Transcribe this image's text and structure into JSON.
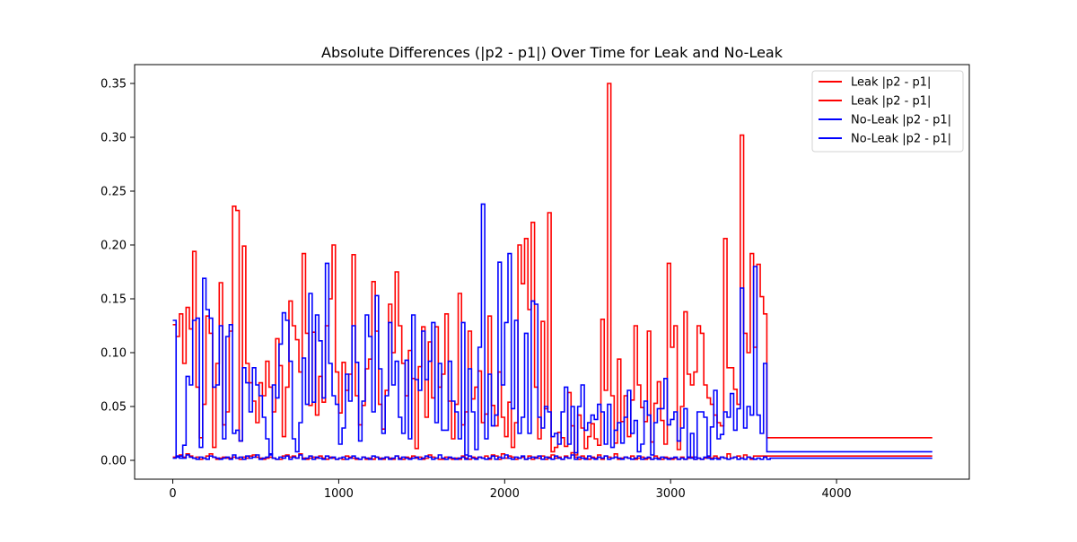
{
  "chart_data": {
    "type": "line",
    "title": "Absolute Differences (|p2 - p1|) Over Time for Leak and No-Leak",
    "xlabel": "",
    "ylabel": "",
    "xlim": [
      -230,
      4800
    ],
    "ylim": [
      -0.0175,
      0.3675
    ],
    "x_ticks": [
      0,
      1000,
      2000,
      3000,
      4000
    ],
    "x_tick_labels": [
      "0",
      "1000",
      "2000",
      "3000",
      "4000"
    ],
    "y_ticks": [
      0.0,
      0.05,
      0.1,
      0.15,
      0.2,
      0.25,
      0.3,
      0.35
    ],
    "y_tick_labels": [
      "0.00",
      "0.05",
      "0.10",
      "0.15",
      "0.20",
      "0.25",
      "0.30",
      "0.35"
    ],
    "grid": false,
    "legend_position": "upper right",
    "step": 20,
    "series": [
      {
        "name": "Leak |p2 - p1|",
        "color": "#ff0000",
        "x_start": 0,
        "values": [
          0.126,
          0.115,
          0.136,
          0.09,
          0.142,
          0.122,
          0.194,
          0.068,
          0.021,
          0.052,
          0.134,
          0.118,
          0.012,
          0.09,
          0.165,
          0.033,
          0.045,
          0.12,
          0.236,
          0.232,
          0.018,
          0.199,
          0.09,
          0.072,
          0.055,
          0.035,
          0.072,
          0.06,
          0.092,
          0.068,
          0.045,
          0.113,
          0.088,
          0.022,
          0.068,
          0.148,
          0.125,
          0.112,
          0.082,
          0.192,
          0.118,
          0.051,
          0.119,
          0.042,
          0.078,
          0.054,
          0.125,
          0.15,
          0.2,
          0.082,
          0.044,
          0.091,
          0.065,
          0.08,
          0.191,
          0.06,
          0.033,
          0.051,
          0.085,
          0.094,
          0.166,
          0.12,
          0.052,
          0.029,
          0.065,
          0.145,
          0.1,
          0.175,
          0.125,
          0.09,
          0.06,
          0.102,
          0.076,
          0.011,
          0.087,
          0.124,
          0.04,
          0.11,
          0.058,
          0.124,
          0.068,
          0.08,
          0.136,
          0.055,
          0.02,
          0.052,
          0.155,
          0.033,
          0.045,
          0.12,
          0.057,
          0.068,
          0.083,
          0.035,
          0.043,
          0.134,
          0.051,
          0.032,
          0.082,
          0.04,
          0.022,
          0.054,
          0.012,
          0.035,
          0.2,
          0.164,
          0.206,
          0.14,
          0.221,
          0.068,
          0.02,
          0.129,
          0.048,
          0.23,
          0.008,
          0.012,
          0.026,
          0.021,
          0.013,
          0.063,
          0.032,
          0.005,
          0.042,
          0.03,
          0.011,
          0.022,
          0.034,
          0.02,
          0.014,
          0.131,
          0.065,
          0.35,
          0.06,
          0.016,
          0.094,
          0.036,
          0.06,
          0.022,
          0.056,
          0.125,
          0.07,
          0.049,
          0.036,
          0.12,
          0.017,
          0.053,
          0.073,
          0.037,
          0.015,
          0.183,
          0.105,
          0.125,
          0.01,
          0.05,
          0.138,
          0.08,
          0.07,
          0.082,
          0.125,
          0.118,
          0.07,
          0.058,
          0.052,
          0.042,
          0.035,
          0.032,
          0.206,
          0.086,
          0.086,
          0.066,
          0.052,
          0.302,
          0.118,
          0.1,
          0.192,
          0.105,
          0.182,
          0.152,
          0.136,
          0.021,
          0.021
        ],
        "x_end": 4577
      },
      {
        "name": "Leak |p2 - p1|",
        "color": "#ff0000",
        "x_start": 0,
        "values": [
          0.003,
          0.004,
          0.005,
          0.003,
          0.006,
          0.004,
          0.002,
          0.003,
          0.001,
          0.002,
          0.004,
          0.006,
          0.003,
          0.001,
          0.002,
          0.003,
          0.002,
          0.002,
          0.003,
          0.002,
          0.001,
          0.003,
          0.002,
          0.004,
          0.005,
          0.003,
          0.002,
          0.001,
          0.002,
          0.003,
          0.002,
          0.001,
          0.001,
          0.004,
          0.005,
          0.003,
          0.004,
          0.002,
          0.006,
          0.002,
          0.001,
          0.002,
          0.003,
          0.002,
          0.004,
          0.002,
          0.001,
          0.003,
          0.002,
          0.001,
          0.002,
          0.001,
          0.004,
          0.003,
          0.002,
          0.001,
          0.001,
          0.003,
          0.001,
          0.002,
          0.001,
          0.003,
          0.002,
          0.001,
          0.003,
          0.002,
          0.001,
          0.004,
          0.002,
          0.001,
          0.003,
          0.002,
          0.004,
          0.002,
          0.003,
          0.001,
          0.002,
          0.005,
          0.003,
          0.002,
          0.001,
          0.001,
          0.003,
          0.002,
          0.001,
          0.002,
          0.001,
          0.004,
          0.002,
          0.001,
          0.003,
          0.002,
          0.003,
          0.002,
          0.004,
          0.001,
          0.005,
          0.004,
          0.001,
          0.006,
          0.002,
          0.004,
          0.003,
          0.001,
          0.002,
          0.003,
          0.001,
          0.004,
          0.001,
          0.003,
          0.002,
          0.004,
          0.001,
          0.003,
          0.005,
          0.002,
          0.003,
          0.001,
          0.004,
          0.002,
          0.007,
          0.003,
          0.001,
          0.004,
          0.002,
          0.001,
          0.003,
          0.002,
          0.005,
          0.001,
          0.004,
          0.003,
          0.002,
          0.006,
          0.001,
          0.002,
          0.003,
          0.002,
          0.004,
          0.001,
          0.002,
          0.003,
          0.001,
          0.002,
          0.001,
          0.004,
          0.002,
          0.001,
          0.003,
          0.002,
          0.001,
          0.002,
          0.001,
          0.003,
          0.001,
          0.002,
          0.003,
          0.001,
          0.002,
          0.001,
          0.002,
          0.003,
          0.002,
          0.004,
          0.002,
          0.003,
          0.002,
          0.006,
          0.002,
          0.003,
          0.004,
          0.002,
          0.005,
          0.003,
          0.001,
          0.004,
          0.004
        ],
        "x_end": 4577
      },
      {
        "name": "No-Leak |p2 - p1|",
        "color": "#0000ff",
        "x_start": 0,
        "values": [
          0.13,
          0.004,
          0.002,
          0.014,
          0.078,
          0.07,
          0.13,
          0.132,
          0.012,
          0.169,
          0.14,
          0.132,
          0.068,
          0.07,
          0.125,
          0.02,
          0.115,
          0.126,
          0.025,
          0.028,
          0.018,
          0.086,
          0.072,
          0.045,
          0.086,
          0.07,
          0.06,
          0.04,
          0.02,
          0.005,
          0.07,
          0.058,
          0.108,
          0.137,
          0.13,
          0.092,
          0.02,
          0.008,
          0.035,
          0.095,
          0.052,
          0.155,
          0.054,
          0.135,
          0.111,
          0.058,
          0.183,
          0.09,
          0.06,
          0.052,
          0.015,
          0.03,
          0.08,
          0.055,
          0.125,
          0.091,
          0.018,
          0.055,
          0.135,
          0.115,
          0.045,
          0.153,
          0.085,
          0.025,
          0.06,
          0.128,
          0.07,
          0.092,
          0.04,
          0.025,
          0.093,
          0.02,
          0.135,
          0.075,
          0.065,
          0.12,
          0.075,
          0.092,
          0.128,
          0.035,
          0.09,
          0.028,
          0.028,
          0.092,
          0.055,
          0.045,
          0.02,
          0.128,
          0.005,
          0.085,
          0.045,
          0.01,
          0.105,
          0.238,
          0.02,
          0.08,
          0.032,
          0.042,
          0.184,
          0.07,
          0.128,
          0.192,
          0.048,
          0.13,
          0.025,
          0.04,
          0.118,
          0.025,
          0.148,
          0.145,
          0.04,
          0.03,
          0.05,
          0.045,
          0.022,
          0.025,
          0.015,
          0.045,
          0.068,
          0.015,
          0.05,
          0.007,
          0.05,
          0.07,
          0.028,
          0.035,
          0.042,
          0.038,
          0.052,
          0.045,
          0.015,
          0.052,
          0.012,
          0.028,
          0.035,
          0.016,
          0.04,
          0.065,
          0.025,
          0.037,
          0.008,
          0.015,
          0.055,
          0.042,
          0.005,
          0.035,
          0.048,
          0.048,
          0.076,
          0.033,
          0.038,
          0.045,
          0.018,
          0.03,
          0.048,
          0.003,
          0.025,
          0.003,
          0.045,
          0.045,
          0.04,
          0.004,
          0.031,
          0.065,
          0.02,
          0.024,
          0.045,
          0.04,
          0.062,
          0.028,
          0.048,
          0.16,
          0.03,
          0.05,
          0.042,
          0.18,
          0.042,
          0.025,
          0.09,
          0.008,
          0.008
        ],
        "x_end": 4577
      },
      {
        "name": "No-Leak |p2 - p1|",
        "color": "#0000ff",
        "x_start": 0,
        "values": [
          0.002,
          0.003,
          0.004,
          0.002,
          0.005,
          0.003,
          0.002,
          0.001,
          0.003,
          0.002,
          0.001,
          0.004,
          0.003,
          0.002,
          0.001,
          0.002,
          0.003,
          0.001,
          0.005,
          0.002,
          0.003,
          0.001,
          0.004,
          0.002,
          0.003,
          0.005,
          0.001,
          0.002,
          0.003,
          0.006,
          0.002,
          0.001,
          0.003,
          0.002,
          0.004,
          0.001,
          0.003,
          0.002,
          0.005,
          0.001,
          0.002,
          0.004,
          0.001,
          0.003,
          0.002,
          0.001,
          0.004,
          0.002,
          0.003,
          0.001,
          0.002,
          0.003,
          0.001,
          0.002,
          0.004,
          0.002,
          0.001,
          0.003,
          0.002,
          0.001,
          0.004,
          0.003,
          0.001,
          0.002,
          0.003,
          0.001,
          0.002,
          0.004,
          0.001,
          0.003,
          0.002,
          0.001,
          0.002,
          0.003,
          0.001,
          0.002,
          0.004,
          0.003,
          0.001,
          0.002,
          0.005,
          0.002,
          0.001,
          0.003,
          0.002,
          0.001,
          0.002,
          0.003,
          0.001,
          0.004,
          0.002,
          0.001,
          0.003,
          0.002,
          0.001,
          0.002,
          0.004,
          0.001,
          0.003,
          0.002,
          0.005,
          0.002,
          0.001,
          0.003,
          0.002,
          0.004,
          0.001,
          0.002,
          0.003,
          0.002,
          0.004,
          0.001,
          0.003,
          0.002,
          0.001,
          0.004,
          0.002,
          0.001,
          0.003,
          0.002,
          0.005,
          0.001,
          0.003,
          0.002,
          0.001,
          0.004,
          0.002,
          0.001,
          0.003,
          0.002,
          0.004,
          0.001,
          0.002,
          0.003,
          0.002,
          0.001,
          0.003,
          0.002,
          0.001,
          0.002,
          0.004,
          0.001,
          0.002,
          0.003,
          0.001,
          0.002,
          0.001,
          0.003,
          0.002,
          0.001,
          0.002,
          0.003,
          0.001,
          0.002,
          0.001,
          0.003,
          0.002,
          0.001,
          0.002,
          0.001,
          0.003,
          0.002,
          0.001,
          0.002,
          0.001,
          0.003,
          0.002,
          0.001,
          0.002,
          0.003,
          0.001,
          0.002,
          0.001,
          0.003,
          0.002,
          0.001,
          0.002,
          0.001,
          0.003,
          0.001,
          0.002,
          0.002
        ],
        "x_end": 4577
      }
    ]
  }
}
